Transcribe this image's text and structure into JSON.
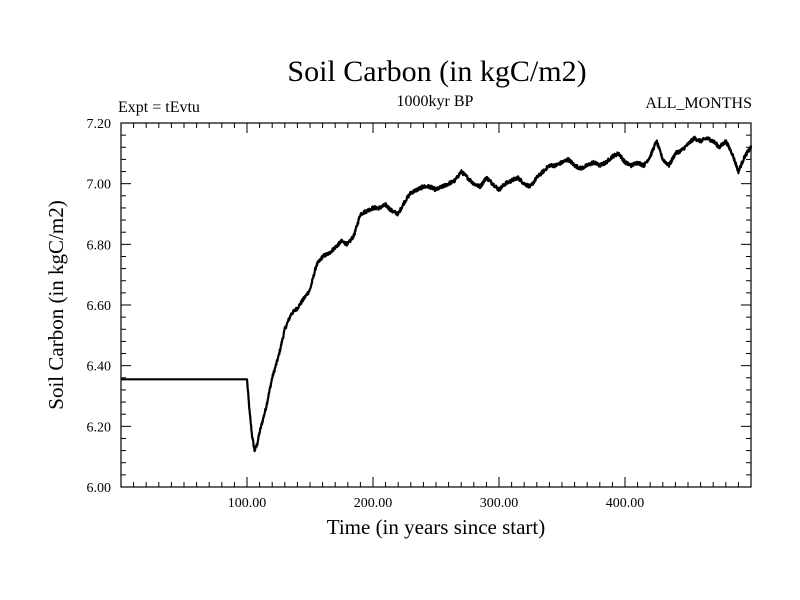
{
  "chart_data": {
    "type": "line",
    "title": "Soil Carbon (in kgC/m2)",
    "subtitle": "1000kyr BP",
    "expt_label": "Expt = tEvtu",
    "months_label": "ALL_MONTHS",
    "xlabel": "Time (in years since start)",
    "ylabel": "Soil Carbon (in kgC/m2)",
    "xlim": [
      0,
      500
    ],
    "ylim": [
      6.0,
      7.2
    ],
    "x_ticks": [
      100,
      200,
      300,
      400
    ],
    "x_tick_labels": [
      "100.00",
      "200.00",
      "300.00",
      "400.00"
    ],
    "y_ticks": [
      6.0,
      6.2,
      6.4,
      6.6,
      6.8,
      7.0,
      7.2
    ],
    "y_tick_labels": [
      "6.00",
      "6.20",
      "6.40",
      "6.60",
      "6.80",
      "7.00",
      "7.20"
    ],
    "series": [
      {
        "name": "Soil Carbon",
        "x": [
          0,
          99,
          100,
          102,
          104,
          106,
          108,
          110,
          115,
          120,
          125,
          130,
          135,
          140,
          145,
          150,
          155,
          160,
          165,
          170,
          175,
          180,
          185,
          190,
          195,
          200,
          205,
          210,
          215,
          220,
          225,
          230,
          235,
          240,
          245,
          250,
          255,
          260,
          265,
          270,
          275,
          280,
          285,
          290,
          295,
          300,
          305,
          310,
          315,
          320,
          325,
          330,
          335,
          340,
          345,
          350,
          355,
          360,
          365,
          370,
          375,
          380,
          385,
          390,
          395,
          400,
          405,
          410,
          415,
          420,
          425,
          430,
          435,
          440,
          445,
          450,
          455,
          460,
          465,
          470,
          475,
          480,
          485,
          490,
          495,
          500
        ],
        "y": [
          6.355,
          6.355,
          6.355,
          6.25,
          6.17,
          6.12,
          6.14,
          6.18,
          6.26,
          6.36,
          6.43,
          6.52,
          6.57,
          6.59,
          6.62,
          6.65,
          6.73,
          6.76,
          6.77,
          6.79,
          6.81,
          6.8,
          6.83,
          6.9,
          6.91,
          6.92,
          6.92,
          6.93,
          6.91,
          6.9,
          6.94,
          6.97,
          6.98,
          6.99,
          6.99,
          6.98,
          6.99,
          7.0,
          7.01,
          7.04,
          7.02,
          7.0,
          6.99,
          7.02,
          7.0,
          6.98,
          7.0,
          7.01,
          7.02,
          7.0,
          6.99,
          7.02,
          7.04,
          7.06,
          7.06,
          7.07,
          7.08,
          7.06,
          7.05,
          7.06,
          7.07,
          7.06,
          7.07,
          7.09,
          7.1,
          7.07,
          7.06,
          7.07,
          7.06,
          7.09,
          7.14,
          7.08,
          7.06,
          7.1,
          7.11,
          7.13,
          7.15,
          7.14,
          7.15,
          7.14,
          7.12,
          7.14,
          7.1,
          7.04,
          7.09,
          7.12
        ]
      }
    ]
  }
}
